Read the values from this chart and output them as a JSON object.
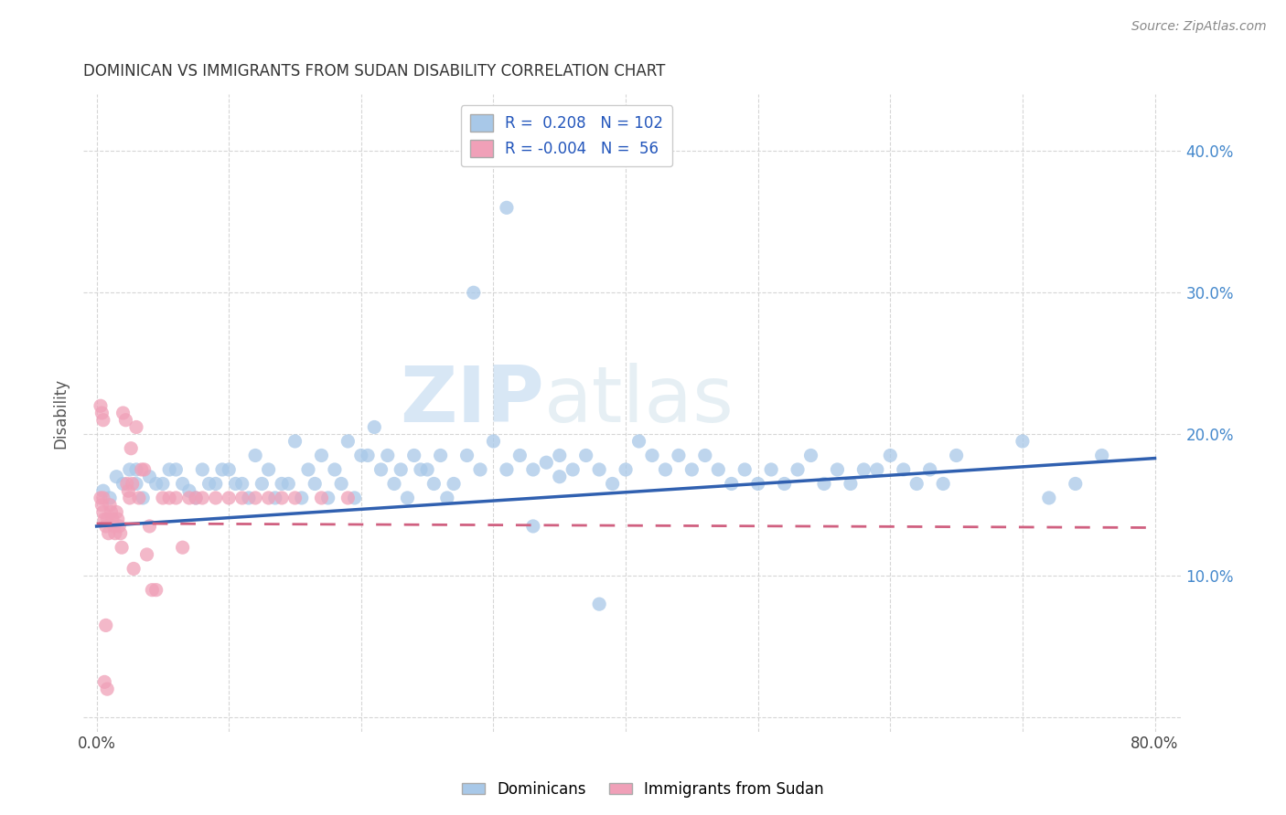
{
  "title": "DOMINICAN VS IMMIGRANTS FROM SUDAN DISABILITY CORRELATION CHART",
  "source": "Source: ZipAtlas.com",
  "ylabel": "Disability",
  "xlim": [
    -0.01,
    0.82
  ],
  "ylim": [
    -0.01,
    0.44
  ],
  "xtick_positions": [
    0.0,
    0.1,
    0.2,
    0.3,
    0.4,
    0.5,
    0.6,
    0.7,
    0.8
  ],
  "xtick_labels": [
    "0.0%",
    "",
    "",
    "",
    "",
    "",
    "",
    "",
    "80.0%"
  ],
  "ytick_positions": [
    0.0,
    0.1,
    0.2,
    0.3,
    0.4
  ],
  "ytick_labels": [
    "",
    "10.0%",
    "20.0%",
    "30.0%",
    "40.0%"
  ],
  "color_blue": "#a8c8e8",
  "color_pink": "#f0a0b8",
  "line_blue": "#3060b0",
  "line_pink": "#d06080",
  "watermark_text": "ZIPatlas",
  "watermark_color": "#ccddef",
  "legend_line1": "R =  0.208   N = 102",
  "legend_line2": "R = -0.004   N =  56",
  "bottom_legend1": "Dominicans",
  "bottom_legend2": "Immigrants from Sudan",
  "blue_line_x0": 0.0,
  "blue_line_x1": 0.8,
  "blue_line_y0": 0.135,
  "blue_line_y1": 0.183,
  "pink_line_x0": 0.0,
  "pink_line_x1": 0.8,
  "pink_line_y0": 0.137,
  "pink_line_y1": 0.134,
  "dominicans_x": [
    0.005,
    0.01,
    0.015,
    0.02,
    0.025,
    0.03,
    0.03,
    0.04,
    0.05,
    0.06,
    0.07,
    0.08,
    0.09,
    0.1,
    0.11,
    0.12,
    0.13,
    0.14,
    0.15,
    0.16,
    0.17,
    0.18,
    0.19,
    0.2,
    0.21,
    0.22,
    0.23,
    0.24,
    0.25,
    0.26,
    0.27,
    0.28,
    0.29,
    0.3,
    0.31,
    0.32,
    0.33,
    0.34,
    0.35,
    0.35,
    0.36,
    0.37,
    0.38,
    0.39,
    0.4,
    0.41,
    0.42,
    0.43,
    0.44,
    0.45,
    0.46,
    0.47,
    0.48,
    0.49,
    0.5,
    0.51,
    0.52,
    0.53,
    0.54,
    0.55,
    0.56,
    0.57,
    0.58,
    0.59,
    0.6,
    0.61,
    0.62,
    0.63,
    0.64,
    0.65,
    0.035,
    0.045,
    0.055,
    0.065,
    0.075,
    0.085,
    0.095,
    0.105,
    0.115,
    0.125,
    0.135,
    0.145,
    0.155,
    0.165,
    0.175,
    0.185,
    0.195,
    0.205,
    0.215,
    0.225,
    0.235,
    0.245,
    0.255,
    0.265,
    0.7,
    0.72,
    0.74,
    0.76,
    0.31,
    0.285,
    0.33,
    0.38
  ],
  "dominicans_y": [
    0.16,
    0.155,
    0.17,
    0.165,
    0.175,
    0.165,
    0.175,
    0.17,
    0.165,
    0.175,
    0.16,
    0.175,
    0.165,
    0.175,
    0.165,
    0.185,
    0.175,
    0.165,
    0.195,
    0.175,
    0.185,
    0.175,
    0.195,
    0.185,
    0.205,
    0.185,
    0.175,
    0.185,
    0.175,
    0.185,
    0.165,
    0.185,
    0.175,
    0.195,
    0.175,
    0.185,
    0.175,
    0.18,
    0.185,
    0.17,
    0.175,
    0.185,
    0.175,
    0.165,
    0.175,
    0.195,
    0.185,
    0.175,
    0.185,
    0.175,
    0.185,
    0.175,
    0.165,
    0.175,
    0.165,
    0.175,
    0.165,
    0.175,
    0.185,
    0.165,
    0.175,
    0.165,
    0.175,
    0.175,
    0.185,
    0.175,
    0.165,
    0.175,
    0.165,
    0.185,
    0.155,
    0.165,
    0.175,
    0.165,
    0.155,
    0.165,
    0.175,
    0.165,
    0.155,
    0.165,
    0.155,
    0.165,
    0.155,
    0.165,
    0.155,
    0.165,
    0.155,
    0.185,
    0.175,
    0.165,
    0.155,
    0.175,
    0.165,
    0.155,
    0.195,
    0.155,
    0.165,
    0.185,
    0.36,
    0.3,
    0.135,
    0.08
  ],
  "sudan_x": [
    0.003,
    0.004,
    0.005,
    0.005,
    0.006,
    0.007,
    0.008,
    0.009,
    0.01,
    0.011,
    0.012,
    0.013,
    0.014,
    0.015,
    0.016,
    0.017,
    0.018,
    0.019,
    0.02,
    0.022,
    0.023,
    0.024,
    0.025,
    0.026,
    0.027,
    0.028,
    0.03,
    0.032,
    0.034,
    0.036,
    0.038,
    0.04,
    0.042,
    0.045,
    0.05,
    0.055,
    0.06,
    0.065,
    0.07,
    0.075,
    0.08,
    0.09,
    0.1,
    0.11,
    0.12,
    0.13,
    0.14,
    0.15,
    0.17,
    0.19,
    0.003,
    0.004,
    0.005,
    0.006,
    0.007,
    0.008
  ],
  "sudan_y": [
    0.155,
    0.15,
    0.145,
    0.155,
    0.14,
    0.135,
    0.14,
    0.13,
    0.15,
    0.145,
    0.14,
    0.135,
    0.13,
    0.145,
    0.14,
    0.135,
    0.13,
    0.12,
    0.215,
    0.21,
    0.165,
    0.16,
    0.155,
    0.19,
    0.165,
    0.105,
    0.205,
    0.155,
    0.175,
    0.175,
    0.115,
    0.135,
    0.09,
    0.09,
    0.155,
    0.155,
    0.155,
    0.12,
    0.155,
    0.155,
    0.155,
    0.155,
    0.155,
    0.155,
    0.155,
    0.155,
    0.155,
    0.155,
    0.155,
    0.155,
    0.22,
    0.215,
    0.21,
    0.025,
    0.065,
    0.02
  ],
  "background_color": "#ffffff",
  "grid_color": "#cccccc",
  "right_label_color": "#4488cc",
  "title_color": "#333333",
  "source_color": "#888888"
}
